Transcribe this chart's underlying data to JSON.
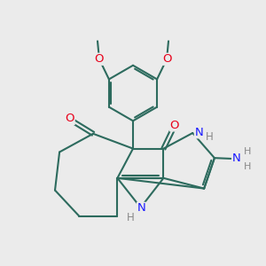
{
  "bg_color": "#ebebeb",
  "bond_color": "#2d6b5e",
  "bond_width": 1.5,
  "atom_colors": {
    "O": "#e8001a",
    "N": "#1a1aff",
    "H": "#888888",
    "C": "#2d6b5e"
  },
  "font_size": 9.5
}
